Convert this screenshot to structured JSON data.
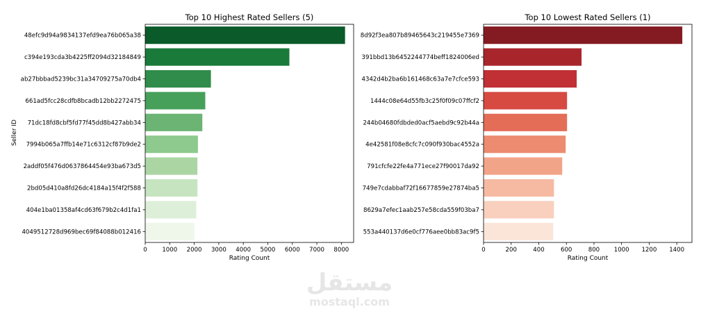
{
  "chart_data": [
    {
      "type": "bar",
      "orientation": "horizontal",
      "title": "Top 10 Highest Rated Sellers (5)",
      "xlabel": "Rating Count",
      "ylabel": "Seller ID",
      "xlim": [
        0,
        8500
      ],
      "xticks": [
        0,
        1000,
        2000,
        3000,
        4000,
        5000,
        6000,
        7000,
        8000
      ],
      "grid": false,
      "categories": [
        "48efc9d94a9834137efd9ea76b065a38",
        "c394e193cda3b4225ff2094d32184849",
        "ab27bbbad5239bc31a34709275a70db4",
        "661ad5fcc28cdfb8bcadb12bb2272475",
        "71dc18fd8cbf5fd77f45dd8b427abb34",
        "7994b065a7ffb14e71c6312cf87b9de2",
        "2addf05f476d0637864454e93ba673d5",
        "2bd05d410a8fd26dc4184a15f4f2f588",
        "404e1ba01358af4cd63f679b2c4d1fa1",
        "4049512728d969bec69f84088b012416"
      ],
      "values": [
        8150,
        5880,
        2680,
        2450,
        2330,
        2150,
        2130,
        2130,
        2080,
        2000
      ],
      "colors": [
        "#0b5a2a",
        "#1a7a3a",
        "#2f8c4a",
        "#46a05a",
        "#6bb473",
        "#8ec98d",
        "#abd6a4",
        "#c6e4c0",
        "#ddefd8",
        "#eef7ea"
      ]
    },
    {
      "type": "bar",
      "orientation": "horizontal",
      "title": "Top 10 Lowest Rated Sellers (1)",
      "xlabel": "Rating Count",
      "ylabel": "",
      "xlim": [
        0,
        1510
      ],
      "xticks": [
        0,
        200,
        400,
        600,
        800,
        1000,
        1200,
        1400
      ],
      "grid": false,
      "categories": [
        "8d92f3ea807b89465643c219455e7369",
        "391bbd13b6452244774beff1824006ed",
        "4342d4b2ba6b161468c63a7e7cfce593",
        "1444c08e64d55fb3c25f0f09c07ffcf2",
        "244b04680fdbded0acf5aebd9c92b44a",
        "4e42581f08e8cfc7c090f930bac4552a",
        "791cfcfe22fe4a771ece27f90017da92",
        "749e7cdabbaf72f16677859e27874ba5",
        "8629a7efec1aab257e58cda559f03ba7",
        "553a440137d6e0cf776aee0bb83ac9f5"
      ],
      "values": [
        1440,
        710,
        675,
        605,
        605,
        595,
        570,
        510,
        510,
        505
      ],
      "colors": [
        "#851b22",
        "#a8252c",
        "#c03034",
        "#d64a42",
        "#e46d57",
        "#ec8b70",
        "#f2a488",
        "#f5baa1",
        "#f8d0bd",
        "#fbe4d8"
      ]
    }
  ],
  "watermark": {
    "arabic": "مستقل",
    "latin": "mostaql.com"
  }
}
